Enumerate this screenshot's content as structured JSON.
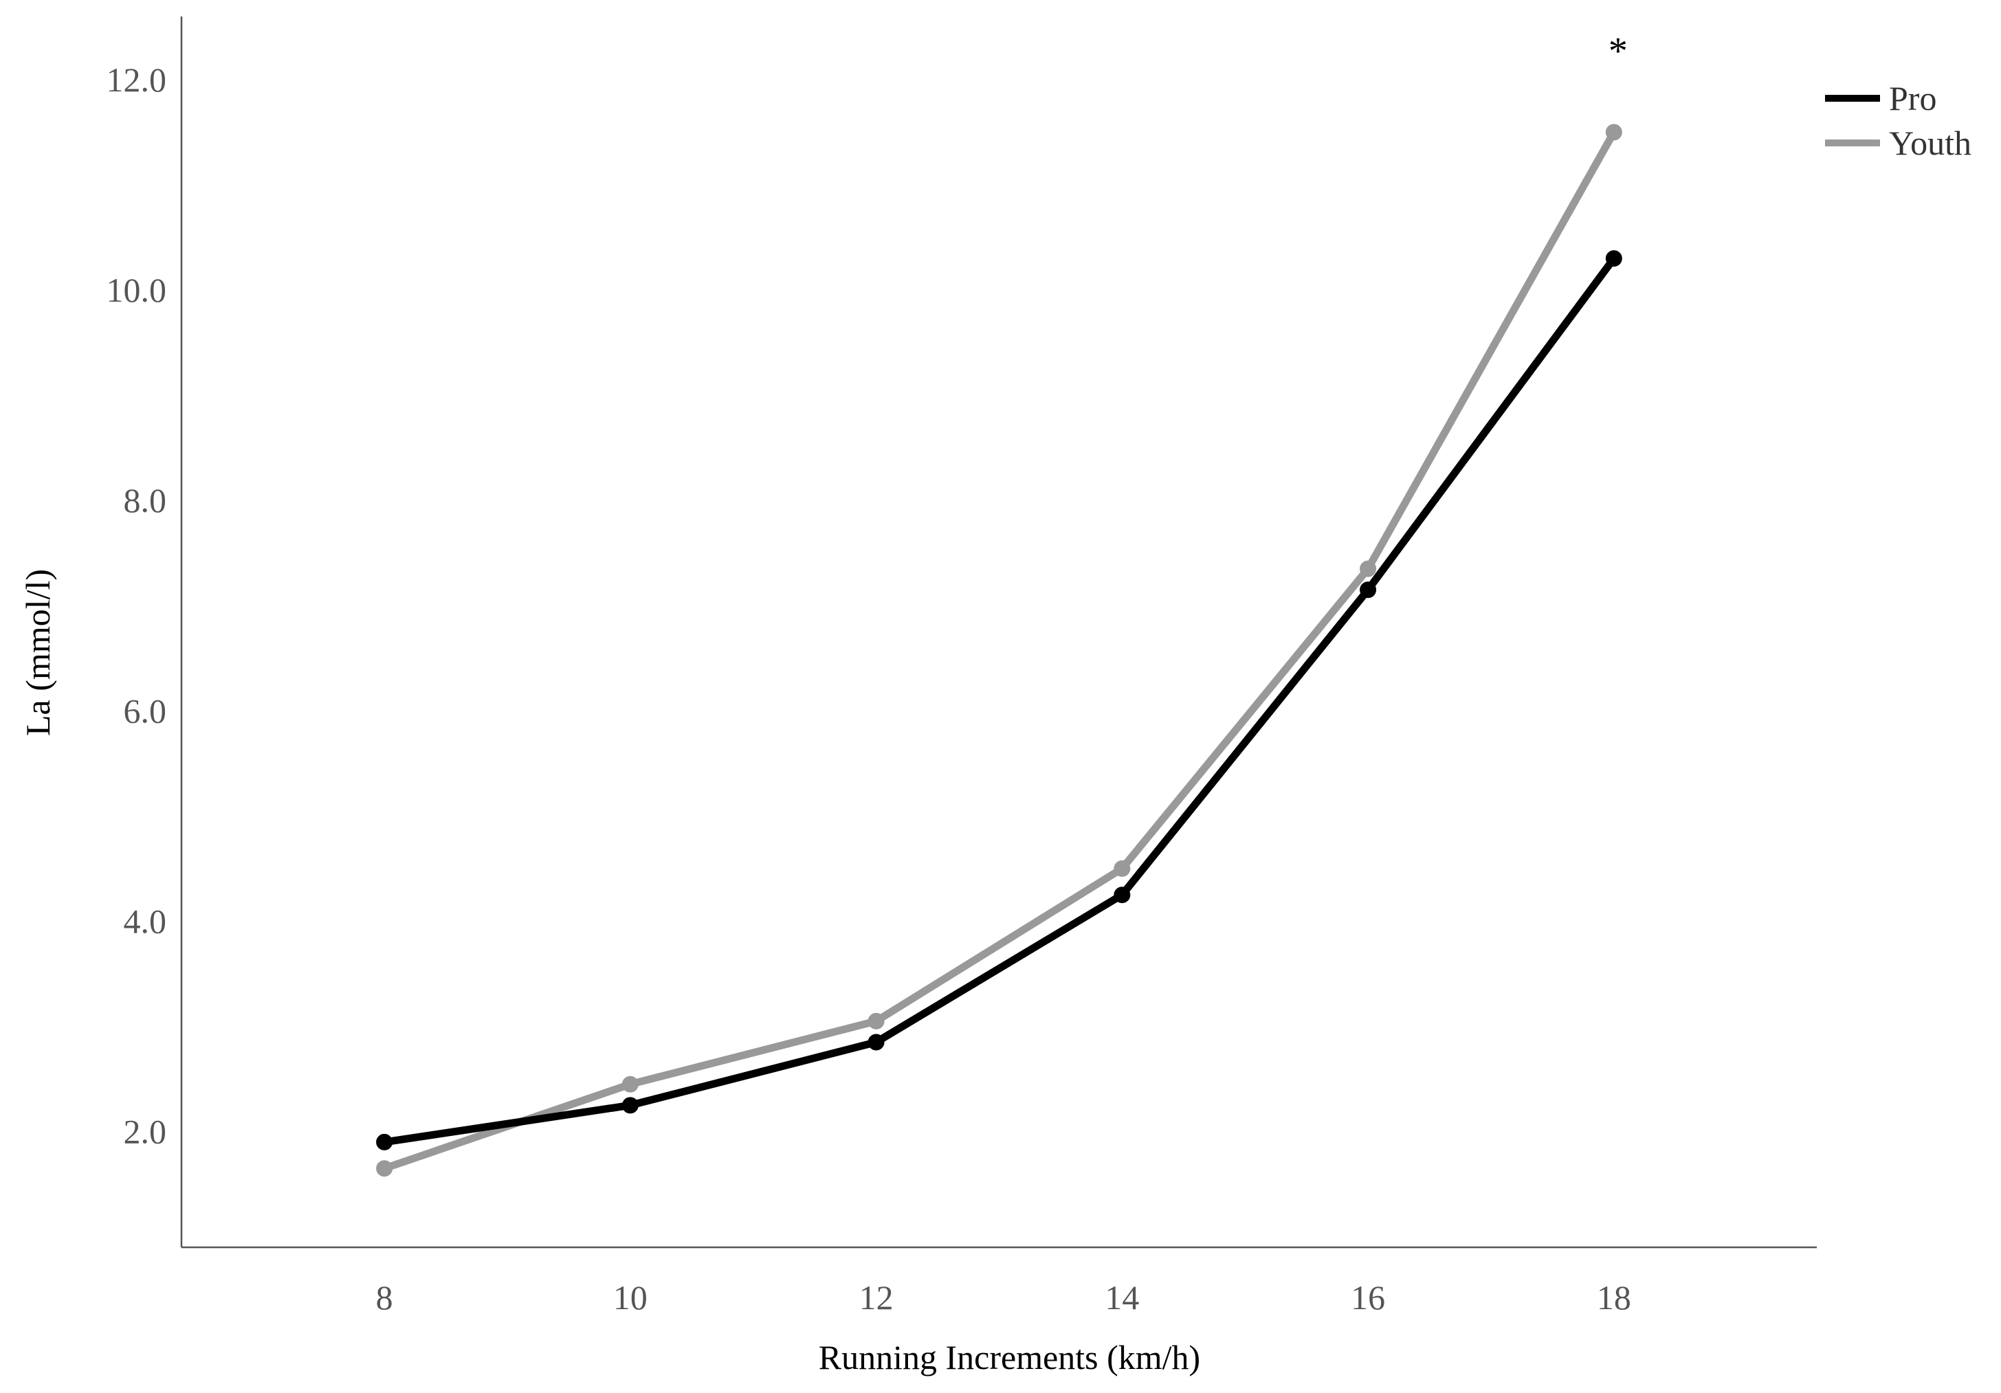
{
  "chart_data": {
    "type": "line",
    "xlabel": "Running Increments (km/h)",
    "ylabel": "La (mmol/l)",
    "x": [
      8,
      10,
      12,
      14,
      16,
      18
    ],
    "x_tick_labels": [
      "8",
      "10",
      "12",
      "14",
      "16",
      "18"
    ],
    "y_tick_labels": [
      "2.0",
      "4.0",
      "6.0",
      "8.0",
      "10.0",
      "12.0"
    ],
    "y_ticks": [
      2,
      4,
      6,
      8,
      10,
      12
    ],
    "xlim": [
      6.35,
      19.65
    ],
    "ylim": [
      0.9,
      12.6
    ],
    "grid": false,
    "legend_position": "top-right",
    "series": [
      {
        "name": "Pro",
        "values": [
          1.9,
          2.25,
          2.85,
          4.25,
          7.15,
          10.3
        ],
        "color": "#000000"
      },
      {
        "name": "Youth",
        "values": [
          1.65,
          2.45,
          3.05,
          4.5,
          7.35,
          11.5
        ],
        "color": "#999999"
      }
    ],
    "annotations": [
      {
        "text": "*",
        "x": 18,
        "y": 12.35
      }
    ]
  }
}
